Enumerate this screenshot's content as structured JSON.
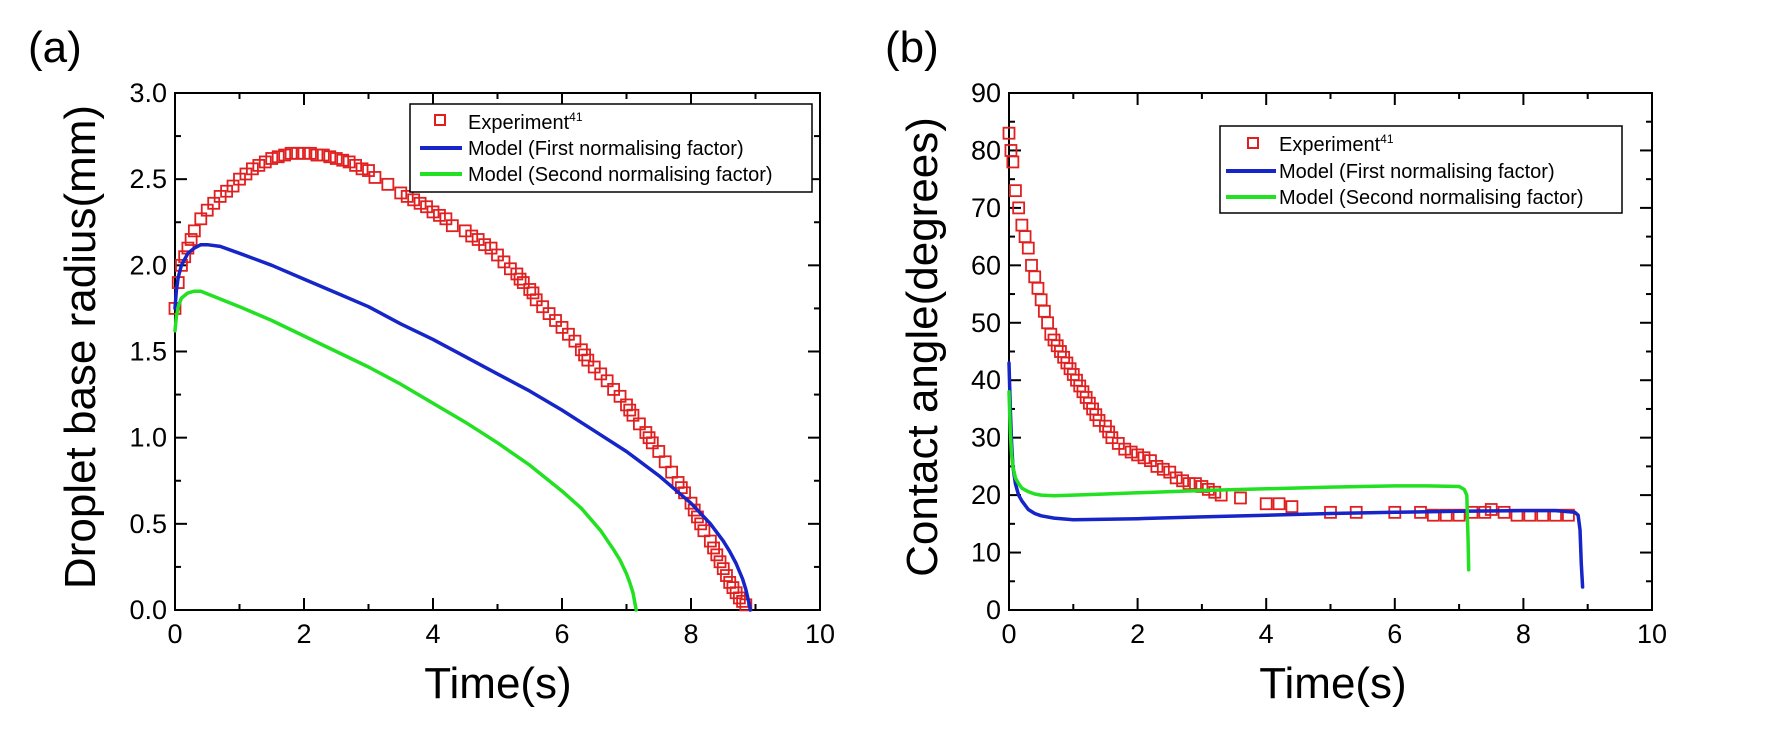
{
  "colors": {
    "experiment": "#e02020",
    "model_first": "#1525c8",
    "model_second": "#22e022",
    "axis": "#000000"
  },
  "chart_data": [
    {
      "type": "scatter",
      "panel_label": "(a)",
      "xlabel": "Time(s)",
      "ylabel": "Droplet base radius(mm)",
      "xlim": [
        0,
        10
      ],
      "ylim": [
        0,
        3.0
      ],
      "xticks": [
        0,
        2,
        4,
        6,
        8,
        10
      ],
      "yticks": [
        0.0,
        0.5,
        1.0,
        1.5,
        2.0,
        2.5,
        3.0
      ],
      "xtick_labels": [
        "0",
        "2",
        "4",
        "6",
        "8",
        "10"
      ],
      "ytick_labels": [
        "0.0",
        "0.5",
        "1.0",
        "1.5",
        "2.0",
        "2.5",
        "3.0"
      ],
      "legend_position": "top-right",
      "legend": [
        {
          "label": "Experiment",
          "sup": "41",
          "kind": "marker",
          "series": "experiment"
        },
        {
          "label": "Model (First normalising factor)",
          "kind": "line",
          "series": "model_first"
        },
        {
          "label": "Model (Second normalising factor)",
          "kind": "line",
          "series": "model_second"
        }
      ],
      "series": [
        {
          "name": "Experiment",
          "style": "marker",
          "color_key": "experiment",
          "x": [
            0.0,
            0.05,
            0.1,
            0.15,
            0.2,
            0.25,
            0.3,
            0.4,
            0.5,
            0.6,
            0.7,
            0.8,
            0.9,
            1.0,
            1.1,
            1.2,
            1.3,
            1.4,
            1.5,
            1.6,
            1.7,
            1.8,
            1.9,
            2.0,
            2.1,
            2.2,
            2.3,
            2.4,
            2.5,
            2.6,
            2.7,
            2.8,
            2.9,
            3.0,
            3.1,
            3.3,
            3.5,
            3.6,
            3.7,
            3.8,
            3.9,
            4.0,
            4.1,
            4.2,
            4.3,
            4.5,
            4.6,
            4.7,
            4.8,
            4.9,
            5.0,
            5.1,
            5.2,
            5.3,
            5.35,
            5.4,
            5.5,
            5.55,
            5.6,
            5.7,
            5.8,
            5.9,
            6.0,
            6.1,
            6.2,
            6.3,
            6.35,
            6.4,
            6.5,
            6.6,
            6.7,
            6.8,
            6.9,
            7.0,
            7.05,
            7.1,
            7.2,
            7.3,
            7.35,
            7.4,
            7.5,
            7.6,
            7.7,
            7.8,
            7.85,
            7.9,
            8.0,
            8.05,
            8.1,
            8.15,
            8.2,
            8.3,
            8.35,
            8.4,
            8.45,
            8.5,
            8.55,
            8.6,
            8.65,
            8.7,
            8.75,
            8.8,
            8.85
          ],
          "y": [
            1.75,
            1.9,
            2.0,
            2.05,
            2.1,
            2.15,
            2.2,
            2.27,
            2.32,
            2.36,
            2.4,
            2.43,
            2.46,
            2.5,
            2.53,
            2.56,
            2.58,
            2.6,
            2.62,
            2.63,
            2.64,
            2.65,
            2.65,
            2.65,
            2.65,
            2.64,
            2.64,
            2.63,
            2.62,
            2.61,
            2.6,
            2.58,
            2.56,
            2.55,
            2.51,
            2.47,
            2.42,
            2.4,
            2.38,
            2.36,
            2.34,
            2.31,
            2.29,
            2.27,
            2.23,
            2.2,
            2.17,
            2.15,
            2.12,
            2.1,
            2.06,
            2.02,
            1.98,
            1.95,
            1.92,
            1.9,
            1.86,
            1.84,
            1.8,
            1.76,
            1.72,
            1.68,
            1.64,
            1.6,
            1.56,
            1.51,
            1.48,
            1.45,
            1.41,
            1.37,
            1.33,
            1.28,
            1.24,
            1.19,
            1.16,
            1.13,
            1.08,
            1.03,
            1.0,
            0.97,
            0.92,
            0.86,
            0.8,
            0.74,
            0.71,
            0.68,
            0.62,
            0.58,
            0.54,
            0.5,
            0.46,
            0.4,
            0.36,
            0.32,
            0.28,
            0.24,
            0.2,
            0.16,
            0.13,
            0.1,
            0.07,
            0.05,
            0.03
          ]
        },
        {
          "name": "Model (First normalising factor)",
          "style": "line",
          "color_key": "model_first",
          "x": [
            0.0,
            0.02,
            0.05,
            0.1,
            0.2,
            0.3,
            0.4,
            0.5,
            0.7,
            1.0,
            1.5,
            2.0,
            2.5,
            3.0,
            3.5,
            4.0,
            4.5,
            5.0,
            5.5,
            6.0,
            6.5,
            7.0,
            7.5,
            8.0,
            8.3,
            8.5,
            8.6,
            8.7,
            8.8,
            8.85,
            8.9,
            8.92
          ],
          "y": [
            1.75,
            1.85,
            1.93,
            2.0,
            2.07,
            2.1,
            2.12,
            2.12,
            2.11,
            2.07,
            2.0,
            1.92,
            1.84,
            1.76,
            1.66,
            1.57,
            1.47,
            1.37,
            1.27,
            1.16,
            1.04,
            0.92,
            0.78,
            0.62,
            0.5,
            0.4,
            0.34,
            0.27,
            0.18,
            0.12,
            0.04,
            0.0
          ]
        },
        {
          "name": "Model (Second normalising factor)",
          "style": "line",
          "color_key": "model_second",
          "x": [
            0.0,
            0.02,
            0.05,
            0.1,
            0.2,
            0.3,
            0.4,
            0.6,
            1.0,
            1.5,
            2.0,
            2.5,
            3.0,
            3.5,
            4.0,
            4.5,
            5.0,
            5.5,
            6.0,
            6.3,
            6.6,
            6.8,
            6.9,
            7.0,
            7.05,
            7.1,
            7.13,
            7.15
          ],
          "y": [
            1.62,
            1.7,
            1.76,
            1.81,
            1.84,
            1.85,
            1.85,
            1.82,
            1.76,
            1.68,
            1.59,
            1.5,
            1.41,
            1.31,
            1.2,
            1.09,
            0.97,
            0.84,
            0.69,
            0.59,
            0.46,
            0.35,
            0.29,
            0.21,
            0.16,
            0.1,
            0.04,
            0.0
          ]
        }
      ]
    },
    {
      "type": "scatter",
      "panel_label": "(b)",
      "xlabel": "Time(s)",
      "ylabel": "Contact angle(degrees)",
      "xlim": [
        0,
        10
      ],
      "ylim": [
        0,
        90
      ],
      "xticks": [
        0,
        2,
        4,
        6,
        8,
        10
      ],
      "yticks": [
        0,
        10,
        20,
        30,
        40,
        50,
        60,
        70,
        80,
        90
      ],
      "xtick_labels": [
        "0",
        "2",
        "4",
        "6",
        "8",
        "10"
      ],
      "ytick_labels": [
        "0",
        "10",
        "20",
        "30",
        "40",
        "50",
        "60",
        "70",
        "80",
        "90"
      ],
      "legend_position": "top-right",
      "legend": [
        {
          "label": "Experiment",
          "sup": "41",
          "kind": "marker",
          "series": "experiment"
        },
        {
          "label": "Model (First normalising factor)",
          "kind": "line",
          "series": "model_first"
        },
        {
          "label": "Model (Second normalising factor)",
          "kind": "line",
          "series": "model_second"
        }
      ],
      "series": [
        {
          "name": "Experiment",
          "style": "marker",
          "color_key": "experiment",
          "x": [
            0.0,
            0.03,
            0.06,
            0.1,
            0.15,
            0.2,
            0.25,
            0.3,
            0.35,
            0.4,
            0.45,
            0.5,
            0.55,
            0.6,
            0.65,
            0.7,
            0.75,
            0.8,
            0.85,
            0.9,
            0.95,
            1.0,
            1.05,
            1.1,
            1.15,
            1.2,
            1.25,
            1.3,
            1.35,
            1.4,
            1.5,
            1.55,
            1.6,
            1.7,
            1.8,
            1.9,
            2.0,
            2.1,
            2.2,
            2.3,
            2.4,
            2.5,
            2.6,
            2.7,
            2.8,
            2.9,
            3.0,
            3.1,
            3.2,
            3.3,
            3.6,
            4.0,
            4.2,
            4.4,
            5.0,
            5.4,
            6.0,
            6.4,
            6.6,
            6.8,
            7.0,
            7.2,
            7.4,
            7.5,
            7.7,
            7.9,
            8.1,
            8.3,
            8.5,
            8.7
          ],
          "y": [
            83,
            80,
            78,
            73,
            70,
            67,
            65,
            63,
            60,
            58,
            56,
            54,
            52,
            50,
            48,
            47,
            46,
            45,
            44,
            43,
            42,
            41,
            40,
            39,
            38,
            37,
            36,
            35,
            34,
            33,
            32,
            31,
            30,
            29,
            28,
            27.5,
            27,
            26.5,
            26,
            25,
            24.5,
            24,
            23,
            22.5,
            22,
            22,
            21.5,
            21,
            20.5,
            20,
            19.5,
            18.5,
            18.5,
            18,
            17,
            17,
            17,
            17,
            16.5,
            16.5,
            16.5,
            17,
            17,
            17.5,
            17,
            16.5,
            16.5,
            16.5,
            16.5,
            16.5
          ]
        },
        {
          "name": "Model (First normalising factor)",
          "style": "line",
          "color_key": "model_first",
          "x": [
            0.0,
            0.02,
            0.04,
            0.06,
            0.1,
            0.15,
            0.2,
            0.3,
            0.4,
            0.5,
            0.7,
            1.0,
            1.5,
            2.0,
            3.0,
            4.0,
            5.0,
            6.0,
            7.0,
            8.0,
            8.5,
            8.8,
            8.85,
            8.88,
            8.9,
            8.92
          ],
          "y": [
            43,
            35,
            29,
            25,
            22,
            20,
            19,
            17.5,
            16.8,
            16.4,
            16.0,
            15.7,
            15.8,
            15.9,
            16.2,
            16.5,
            16.8,
            17.0,
            17.2,
            17.3,
            17.3,
            17.0,
            16.5,
            14,
            8,
            4
          ]
        },
        {
          "name": "Model (Second normalising factor)",
          "style": "line",
          "color_key": "model_second",
          "x": [
            0.0,
            0.02,
            0.04,
            0.06,
            0.1,
            0.15,
            0.2,
            0.3,
            0.4,
            0.5,
            0.7,
            1.0,
            1.5,
            2.0,
            3.0,
            4.0,
            5.0,
            6.0,
            6.5,
            7.0,
            7.08,
            7.12,
            7.14,
            7.15
          ],
          "y": [
            38,
            31,
            27,
            25,
            23,
            22,
            21.2,
            20.6,
            20.2,
            20.0,
            19.9,
            20.0,
            20.2,
            20.4,
            20.8,
            21.1,
            21.4,
            21.6,
            21.6,
            21.5,
            21.0,
            20.0,
            12,
            7
          ]
        }
      ]
    }
  ]
}
